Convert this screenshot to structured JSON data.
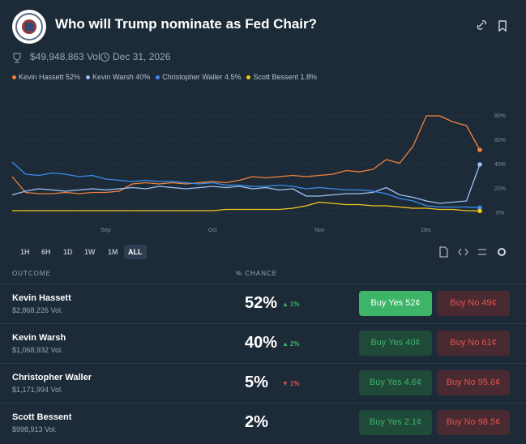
{
  "header": {
    "title": "Who will Trump nominate as Fed Chair?",
    "volume": "$49,948,863 Vol.",
    "end_date": "Dec 31, 2026"
  },
  "chart_data": {
    "type": "line",
    "categories": [
      null,
      null,
      null,
      null,
      null,
      null,
      null,
      "Sep",
      null,
      null,
      null,
      null,
      null,
      null,
      null,
      "Oct",
      null,
      null,
      null,
      null,
      null,
      null,
      null,
      "Nov",
      null,
      null,
      null,
      null,
      null,
      null,
      null,
      "Dec",
      null,
      null,
      null,
      null
    ],
    "series": [
      {
        "name": "Kevin Hassett 52%",
        "color": "#f0833a",
        "values": [
          30,
          17,
          16,
          16,
          17,
          16,
          17,
          17,
          18,
          24,
          25,
          24,
          25,
          24,
          25,
          26,
          25,
          27,
          30,
          29,
          30,
          31,
          30,
          31,
          32,
          35,
          34,
          36,
          44,
          41,
          55,
          80,
          80,
          75,
          72,
          52
        ]
      },
      {
        "name": "Kevin Warsh 40%",
        "color": "#9cc2f5",
        "values": [
          15,
          18,
          20,
          19,
          18,
          19,
          20,
          19,
          20,
          21,
          20,
          22,
          21,
          20,
          21,
          22,
          21,
          22,
          20,
          21,
          19,
          20,
          14,
          14,
          15,
          16,
          16,
          17,
          21,
          15,
          13,
          10,
          8,
          9,
          10,
          40
        ]
      },
      {
        "name": "Christopher Waller 4.5%",
        "color": "#3b8df0",
        "values": [
          42,
          32,
          31,
          33,
          32,
          30,
          31,
          28,
          27,
          26,
          27,
          26,
          26,
          25,
          24,
          25,
          23,
          23,
          22,
          22,
          23,
          22,
          20,
          21,
          20,
          19,
          19,
          18,
          16,
          12,
          10,
          6,
          5,
          5,
          5,
          4.5
        ]
      },
      {
        "name": "Scott Bessent 1.8%",
        "color": "#f5c518",
        "values": [
          2,
          2,
          2,
          2,
          2,
          2,
          2,
          2,
          2,
          2,
          2,
          2,
          2,
          2,
          2,
          2,
          3,
          3,
          3,
          3,
          3,
          4,
          6,
          9,
          8,
          7,
          7,
          6,
          6,
          5,
          4,
          4,
          3,
          3,
          2,
          1.8
        ]
      }
    ],
    "ylim": [
      0,
      90
    ],
    "yticks": [
      {
        "value": 0,
        "label": "0%"
      },
      {
        "value": 20,
        "label": "20%"
      },
      {
        "value": 40,
        "label": "40%"
      },
      {
        "value": 60,
        "label": "60%"
      },
      {
        "value": 80,
        "label": "80%"
      }
    ],
    "grid": true
  },
  "time_ranges": {
    "options": [
      "1H",
      "6H",
      "1D",
      "1W",
      "1M",
      "ALL"
    ],
    "selected": 5
  },
  "table": {
    "headers": [
      "OUTCOME",
      "% CHANCE"
    ],
    "rows": [
      {
        "name": "Kevin Hassett",
        "volume": "$2,868,226 Vol.",
        "chance": "52%",
        "change": "1%",
        "trend": "up",
        "buy_yes": "Buy Yes 52¢",
        "buy_no": "Buy No 49¢",
        "highlight": true
      },
      {
        "name": "Kevin Warsh",
        "volume": "$1,068,932 Vol.",
        "chance": "40%",
        "change": "2%",
        "trend": "up",
        "buy_yes": "Buy Yes 40¢",
        "buy_no": "Buy No 61¢",
        "highlight": false
      },
      {
        "name": "Christopher Waller",
        "volume": "$1,171,994 Vol.",
        "chance": "5%",
        "change": "1%",
        "trend": "down",
        "buy_yes": "Buy Yes 4.6¢",
        "buy_no": "Buy No 95.6¢",
        "highlight": false
      },
      {
        "name": "Scott Bessent",
        "volume": "$998,913 Vol.",
        "chance": "2%",
        "buy_yes": "Buy Yes 2.1¢",
        "buy_no": "Buy No 98.5¢",
        "highlight": false
      }
    ]
  }
}
